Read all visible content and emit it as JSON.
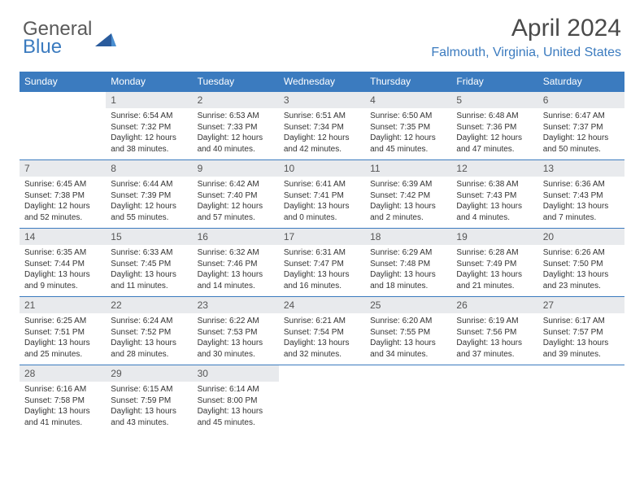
{
  "brand": {
    "word1": "General",
    "word2": "Blue"
  },
  "title": "April 2024",
  "location": "Falmouth, Virginia, United States",
  "header_bg": "#3b7bbf",
  "days": [
    "Sunday",
    "Monday",
    "Tuesday",
    "Wednesday",
    "Thursday",
    "Friday",
    "Saturday"
  ],
  "weeks": [
    {
      "nums": [
        "",
        "1",
        "2",
        "3",
        "4",
        "5",
        "6"
      ],
      "cells": [
        {
          "sr": "",
          "ss": "",
          "dl1": "",
          "dl2": ""
        },
        {
          "sr": "Sunrise: 6:54 AM",
          "ss": "Sunset: 7:32 PM",
          "dl1": "Daylight: 12 hours",
          "dl2": "and 38 minutes."
        },
        {
          "sr": "Sunrise: 6:53 AM",
          "ss": "Sunset: 7:33 PM",
          "dl1": "Daylight: 12 hours",
          "dl2": "and 40 minutes."
        },
        {
          "sr": "Sunrise: 6:51 AM",
          "ss": "Sunset: 7:34 PM",
          "dl1": "Daylight: 12 hours",
          "dl2": "and 42 minutes."
        },
        {
          "sr": "Sunrise: 6:50 AM",
          "ss": "Sunset: 7:35 PM",
          "dl1": "Daylight: 12 hours",
          "dl2": "and 45 minutes."
        },
        {
          "sr": "Sunrise: 6:48 AM",
          "ss": "Sunset: 7:36 PM",
          "dl1": "Daylight: 12 hours",
          "dl2": "and 47 minutes."
        },
        {
          "sr": "Sunrise: 6:47 AM",
          "ss": "Sunset: 7:37 PM",
          "dl1": "Daylight: 12 hours",
          "dl2": "and 50 minutes."
        }
      ]
    },
    {
      "nums": [
        "7",
        "8",
        "9",
        "10",
        "11",
        "12",
        "13"
      ],
      "cells": [
        {
          "sr": "Sunrise: 6:45 AM",
          "ss": "Sunset: 7:38 PM",
          "dl1": "Daylight: 12 hours",
          "dl2": "and 52 minutes."
        },
        {
          "sr": "Sunrise: 6:44 AM",
          "ss": "Sunset: 7:39 PM",
          "dl1": "Daylight: 12 hours",
          "dl2": "and 55 minutes."
        },
        {
          "sr": "Sunrise: 6:42 AM",
          "ss": "Sunset: 7:40 PM",
          "dl1": "Daylight: 12 hours",
          "dl2": "and 57 minutes."
        },
        {
          "sr": "Sunrise: 6:41 AM",
          "ss": "Sunset: 7:41 PM",
          "dl1": "Daylight: 13 hours",
          "dl2": "and 0 minutes."
        },
        {
          "sr": "Sunrise: 6:39 AM",
          "ss": "Sunset: 7:42 PM",
          "dl1": "Daylight: 13 hours",
          "dl2": "and 2 minutes."
        },
        {
          "sr": "Sunrise: 6:38 AM",
          "ss": "Sunset: 7:43 PM",
          "dl1": "Daylight: 13 hours",
          "dl2": "and 4 minutes."
        },
        {
          "sr": "Sunrise: 6:36 AM",
          "ss": "Sunset: 7:43 PM",
          "dl1": "Daylight: 13 hours",
          "dl2": "and 7 minutes."
        }
      ]
    },
    {
      "nums": [
        "14",
        "15",
        "16",
        "17",
        "18",
        "19",
        "20"
      ],
      "cells": [
        {
          "sr": "Sunrise: 6:35 AM",
          "ss": "Sunset: 7:44 PM",
          "dl1": "Daylight: 13 hours",
          "dl2": "and 9 minutes."
        },
        {
          "sr": "Sunrise: 6:33 AM",
          "ss": "Sunset: 7:45 PM",
          "dl1": "Daylight: 13 hours",
          "dl2": "and 11 minutes."
        },
        {
          "sr": "Sunrise: 6:32 AM",
          "ss": "Sunset: 7:46 PM",
          "dl1": "Daylight: 13 hours",
          "dl2": "and 14 minutes."
        },
        {
          "sr": "Sunrise: 6:31 AM",
          "ss": "Sunset: 7:47 PM",
          "dl1": "Daylight: 13 hours",
          "dl2": "and 16 minutes."
        },
        {
          "sr": "Sunrise: 6:29 AM",
          "ss": "Sunset: 7:48 PM",
          "dl1": "Daylight: 13 hours",
          "dl2": "and 18 minutes."
        },
        {
          "sr": "Sunrise: 6:28 AM",
          "ss": "Sunset: 7:49 PM",
          "dl1": "Daylight: 13 hours",
          "dl2": "and 21 minutes."
        },
        {
          "sr": "Sunrise: 6:26 AM",
          "ss": "Sunset: 7:50 PM",
          "dl1": "Daylight: 13 hours",
          "dl2": "and 23 minutes."
        }
      ]
    },
    {
      "nums": [
        "21",
        "22",
        "23",
        "24",
        "25",
        "26",
        "27"
      ],
      "cells": [
        {
          "sr": "Sunrise: 6:25 AM",
          "ss": "Sunset: 7:51 PM",
          "dl1": "Daylight: 13 hours",
          "dl2": "and 25 minutes."
        },
        {
          "sr": "Sunrise: 6:24 AM",
          "ss": "Sunset: 7:52 PM",
          "dl1": "Daylight: 13 hours",
          "dl2": "and 28 minutes."
        },
        {
          "sr": "Sunrise: 6:22 AM",
          "ss": "Sunset: 7:53 PM",
          "dl1": "Daylight: 13 hours",
          "dl2": "and 30 minutes."
        },
        {
          "sr": "Sunrise: 6:21 AM",
          "ss": "Sunset: 7:54 PM",
          "dl1": "Daylight: 13 hours",
          "dl2": "and 32 minutes."
        },
        {
          "sr": "Sunrise: 6:20 AM",
          "ss": "Sunset: 7:55 PM",
          "dl1": "Daylight: 13 hours",
          "dl2": "and 34 minutes."
        },
        {
          "sr": "Sunrise: 6:19 AM",
          "ss": "Sunset: 7:56 PM",
          "dl1": "Daylight: 13 hours",
          "dl2": "and 37 minutes."
        },
        {
          "sr": "Sunrise: 6:17 AM",
          "ss": "Sunset: 7:57 PM",
          "dl1": "Daylight: 13 hours",
          "dl2": "and 39 minutes."
        }
      ]
    },
    {
      "nums": [
        "28",
        "29",
        "30",
        "",
        "",
        "",
        ""
      ],
      "cells": [
        {
          "sr": "Sunrise: 6:16 AM",
          "ss": "Sunset: 7:58 PM",
          "dl1": "Daylight: 13 hours",
          "dl2": "and 41 minutes."
        },
        {
          "sr": "Sunrise: 6:15 AM",
          "ss": "Sunset: 7:59 PM",
          "dl1": "Daylight: 13 hours",
          "dl2": "and 43 minutes."
        },
        {
          "sr": "Sunrise: 6:14 AM",
          "ss": "Sunset: 8:00 PM",
          "dl1": "Daylight: 13 hours",
          "dl2": "and 45 minutes."
        },
        {
          "sr": "",
          "ss": "",
          "dl1": "",
          "dl2": ""
        },
        {
          "sr": "",
          "ss": "",
          "dl1": "",
          "dl2": ""
        },
        {
          "sr": "",
          "ss": "",
          "dl1": "",
          "dl2": ""
        },
        {
          "sr": "",
          "ss": "",
          "dl1": "",
          "dl2": ""
        }
      ]
    }
  ]
}
